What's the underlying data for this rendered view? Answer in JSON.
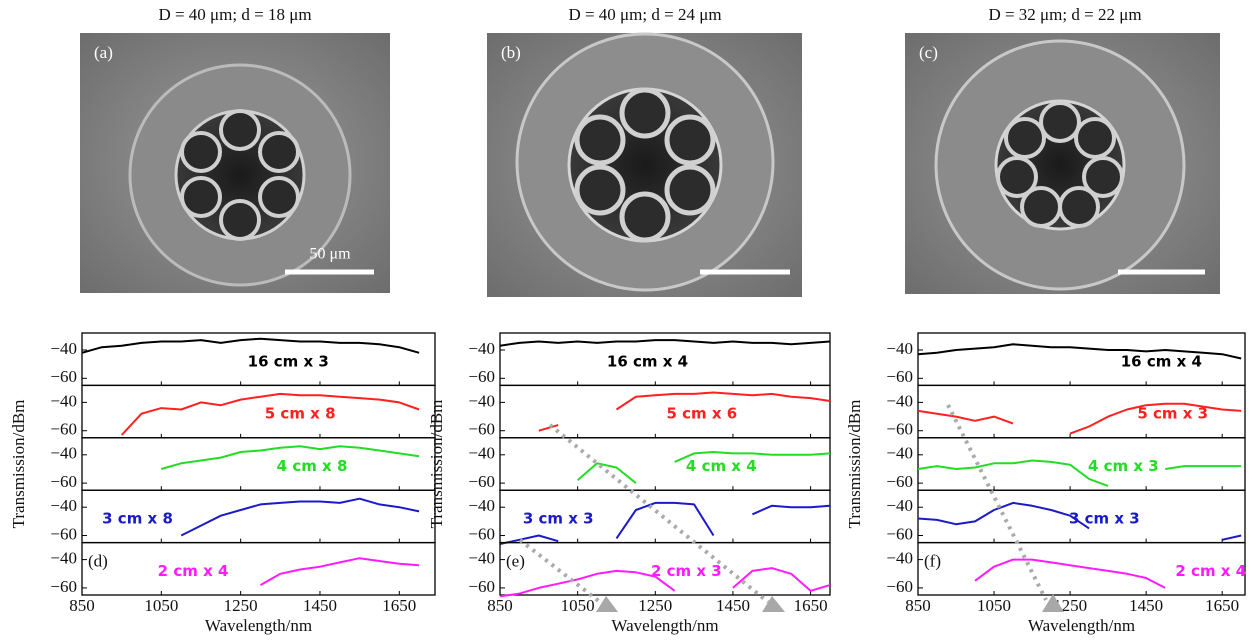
{
  "chart_data": [
    {
      "type": "line",
      "title": "D = 40 μm; d = 18 μm",
      "image_label": "(a)",
      "scale_bar_label": "50 μm",
      "panel_label": "(d)",
      "x_label": "Wavelength/nm",
      "y_label": "Transmission/dBm",
      "x": [
        850,
        900,
        950,
        1000,
        1050,
        1100,
        1150,
        1200,
        1250,
        1300,
        1350,
        1400,
        1450,
        1500,
        1550,
        1600,
        1650,
        1700
      ],
      "xlim": [
        850,
        1740
      ],
      "xticks": [
        850,
        1050,
        1250,
        1450,
        1650
      ],
      "ylim": [
        -65,
        -28
      ],
      "yticks": [
        {
          "value": -60,
          "label": "−60"
        },
        {
          "value": -40,
          "label": "−40"
        }
      ],
      "series": [
        {
          "name": "16 cm x 3",
          "color": "#000000",
          "values": [
            -42,
            -38,
            -37,
            -35,
            -34,
            -34,
            -33,
            -35,
            -33,
            -32,
            -33,
            -34,
            -34,
            -35,
            -35,
            -36,
            -38,
            -42
          ]
        },
        {
          "name": "5 cm x 8",
          "color": "#ff2020",
          "values": [
            null,
            null,
            -63,
            -48,
            -44,
            -45,
            -40,
            -42,
            -38,
            -36,
            -34,
            -35,
            -35,
            -36,
            -37,
            -38,
            -40,
            -45
          ]
        },
        {
          "name": "4 cm x 8",
          "color": "#22dd22",
          "values": [
            null,
            null,
            null,
            null,
            -50,
            -46,
            -44,
            -42,
            -38,
            -37,
            -35,
            -34,
            -36,
            -34,
            -35,
            -37,
            -39,
            -41
          ]
        },
        {
          "name": "3 cm x 8",
          "color": "#1a1acc",
          "values": [
            null,
            null,
            null,
            null,
            null,
            -60,
            -53,
            -46,
            -42,
            -38,
            -37,
            -36,
            -36,
            -37,
            -34,
            -38,
            -40,
            -43
          ]
        },
        {
          "name": "2 cm x 4",
          "color": "#ff1aff",
          "values": [
            null,
            null,
            null,
            null,
            null,
            null,
            null,
            null,
            null,
            -58,
            -50,
            -47,
            -45,
            -42,
            -39,
            -41,
            -43,
            -44
          ]
        }
      ]
    },
    {
      "type": "line",
      "title": "D = 40 μm; d = 24 μm",
      "image_label": "(b)",
      "panel_label": "(e)",
      "x_label": "Wavelength/nm",
      "y_label": "Transmission/dBm",
      "x": [
        850,
        900,
        950,
        1000,
        1050,
        1100,
        1150,
        1200,
        1250,
        1300,
        1350,
        1400,
        1450,
        1500,
        1550,
        1600,
        1650,
        1700
      ],
      "xlim": [
        850,
        1700
      ],
      "xticks": [
        850,
        1050,
        1250,
        1450,
        1650
      ],
      "ylim": [
        -65,
        -28
      ],
      "yticks": [
        {
          "value": -60,
          "label": "−60"
        },
        {
          "value": -40,
          "label": "−40"
        }
      ],
      "series": [
        {
          "name": "16 cm x 4",
          "color": "#000000",
          "values": [
            -37,
            -35,
            -34,
            -35,
            -34,
            -35,
            -34,
            -34,
            -33,
            -33,
            -34,
            -35,
            -34,
            -35,
            -35,
            -36,
            -35,
            -34
          ]
        },
        {
          "name": "5 cm x 6",
          "color": "#ff2020",
          "values": [
            -64,
            null,
            -60,
            -56,
            null,
            null,
            -45,
            -36,
            -35,
            -34,
            -34,
            -33,
            -34,
            -35,
            -34,
            -36,
            -37,
            -39
          ]
        },
        {
          "name": "4 cm x 4",
          "color": "#22dd22",
          "values": [
            null,
            null,
            null,
            null,
            -58,
            -46,
            -49,
            -60,
            null,
            -45,
            -39,
            -38,
            -39,
            -39,
            -40,
            -40,
            -40,
            -39
          ]
        },
        {
          "name": "3 cm x 3",
          "color": "#1a1acc",
          "values": [
            -66,
            -63,
            -60,
            -64,
            null,
            null,
            -62,
            -42,
            -37,
            -37,
            -38,
            -60,
            null,
            -45,
            -39,
            -40,
            -40,
            -39
          ]
        },
        {
          "name": "2 cm x 3",
          "color": "#ff1aff",
          "values": [
            -66,
            -64,
            -60,
            -57,
            -54,
            -50,
            -48,
            -49,
            -52,
            -62,
            null,
            null,
            -60,
            -48,
            -46,
            -50,
            -62,
            -58
          ]
        }
      ]
    },
    {
      "type": "line",
      "title": "D = 32 μm; d = 22 μm",
      "image_label": "(c)",
      "panel_label": "(f)",
      "x_label": "Wavelength/nm",
      "y_label": "Transmission/dBm",
      "x": [
        850,
        900,
        950,
        1000,
        1050,
        1100,
        1150,
        1200,
        1250,
        1300,
        1350,
        1400,
        1450,
        1500,
        1550,
        1600,
        1650,
        1700
      ],
      "xlim": [
        850,
        1710
      ],
      "xticks": [
        850,
        1050,
        1250,
        1450,
        1650
      ],
      "ylim": [
        -65,
        -28
      ],
      "yticks": [
        {
          "value": -60,
          "label": "−60"
        },
        {
          "value": -40,
          "label": "−40"
        }
      ],
      "series": [
        {
          "name": "16 cm x 4",
          "color": "#000000",
          "values": [
            -43,
            -42,
            -40,
            -39,
            -38,
            -36,
            -37,
            -38,
            -38,
            -39,
            -40,
            -40,
            -41,
            -40,
            -41,
            -42,
            -43,
            -46
          ]
        },
        {
          "name": "5 cm x 3",
          "color": "#ff2020",
          "values": [
            -46,
            -48,
            -50,
            -53,
            -50,
            -55,
            null,
            null,
            -62,
            -57,
            -50,
            -45,
            -42,
            -41,
            -41,
            -43,
            -45,
            -46
          ]
        },
        {
          "name": "4 cm x 3",
          "color": "#22dd22",
          "values": [
            -50,
            -48,
            -50,
            -49,
            -46,
            -46,
            -44,
            -45,
            -47,
            -57,
            -62,
            null,
            null,
            -50,
            -48,
            -48,
            -48,
            -48
          ]
        },
        {
          "name": "3 cm x 3",
          "color": "#1a1acc",
          "values": [
            -48,
            -49,
            -52,
            -50,
            -42,
            -37,
            -39,
            -42,
            -46,
            -55,
            null,
            null,
            null,
            null,
            null,
            null,
            -63,
            -60
          ]
        },
        {
          "name": "2 cm x 4",
          "color": "#ff1aff",
          "values": [
            null,
            null,
            null,
            -55,
            -45,
            -40,
            -40,
            -42,
            -44,
            -46,
            -48,
            -50,
            -53,
            -60,
            null,
            null,
            null,
            null
          ]
        }
      ]
    }
  ]
}
